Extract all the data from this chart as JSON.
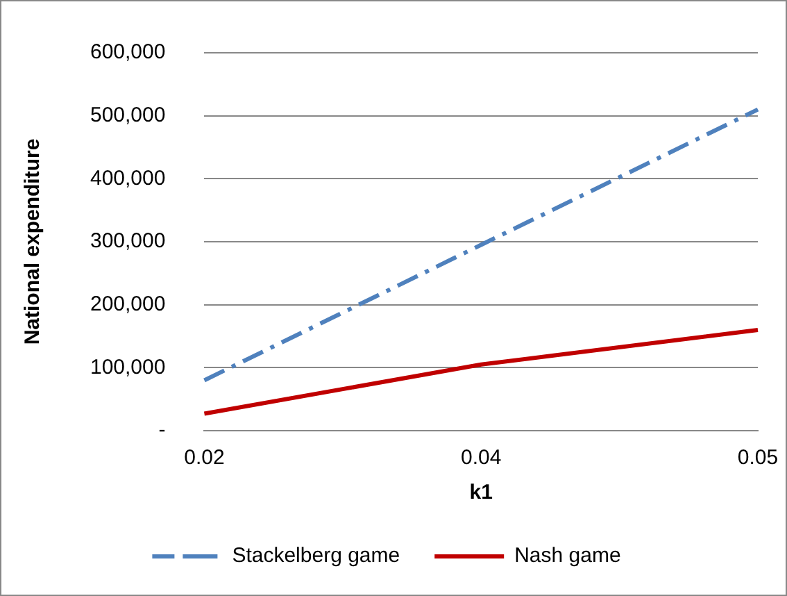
{
  "chart_data": {
    "type": "line",
    "xlabel": "k1",
    "ylabel": "National expenditure",
    "categories": [
      "0.02",
      "0.04",
      "0.05"
    ],
    "series": [
      {
        "name": "Stackelberg game",
        "color": "#4f81bd",
        "values": [
          80000,
          295000,
          510000
        ],
        "line_style": "dashed"
      },
      {
        "name": "Nash game",
        "color": "#c00000",
        "values": [
          27000,
          105000,
          160000
        ],
        "line_style": "solid"
      }
    ],
    "ylim": [
      0,
      600000
    ],
    "yticks": [
      {
        "value": 0,
        "label": "-"
      },
      {
        "value": 100000,
        "label": "100,000"
      },
      {
        "value": 200000,
        "label": "200,000"
      },
      {
        "value": 300000,
        "label": "300,000"
      },
      {
        "value": 400000,
        "label": "400,000"
      },
      {
        "value": 500000,
        "label": "500,000"
      },
      {
        "value": 600000,
        "label": "600,000"
      }
    ],
    "grid": "y",
    "legend": "bottom",
    "marker": "none"
  }
}
